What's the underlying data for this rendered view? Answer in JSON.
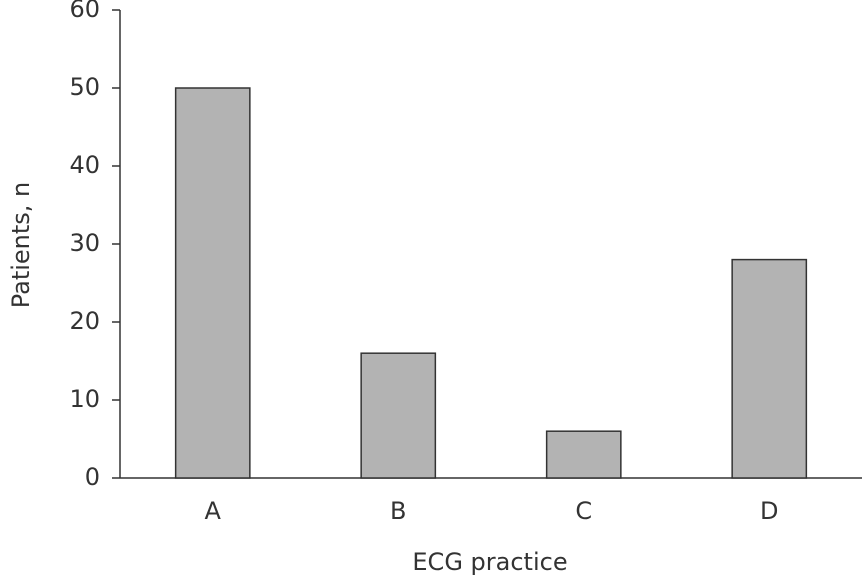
{
  "chart_data": {
    "type": "bar",
    "x_label": "ECG practice",
    "y_label": "Patients, n",
    "categories": [
      "A",
      "B",
      "C",
      "D"
    ],
    "values": [
      50,
      16,
      6,
      28
    ],
    "color": "#b3b3b3",
    "ylim": [
      0,
      60
    ],
    "yticks": [
      0,
      10,
      20,
      30,
      40,
      50,
      60
    ],
    "grid": false
  }
}
